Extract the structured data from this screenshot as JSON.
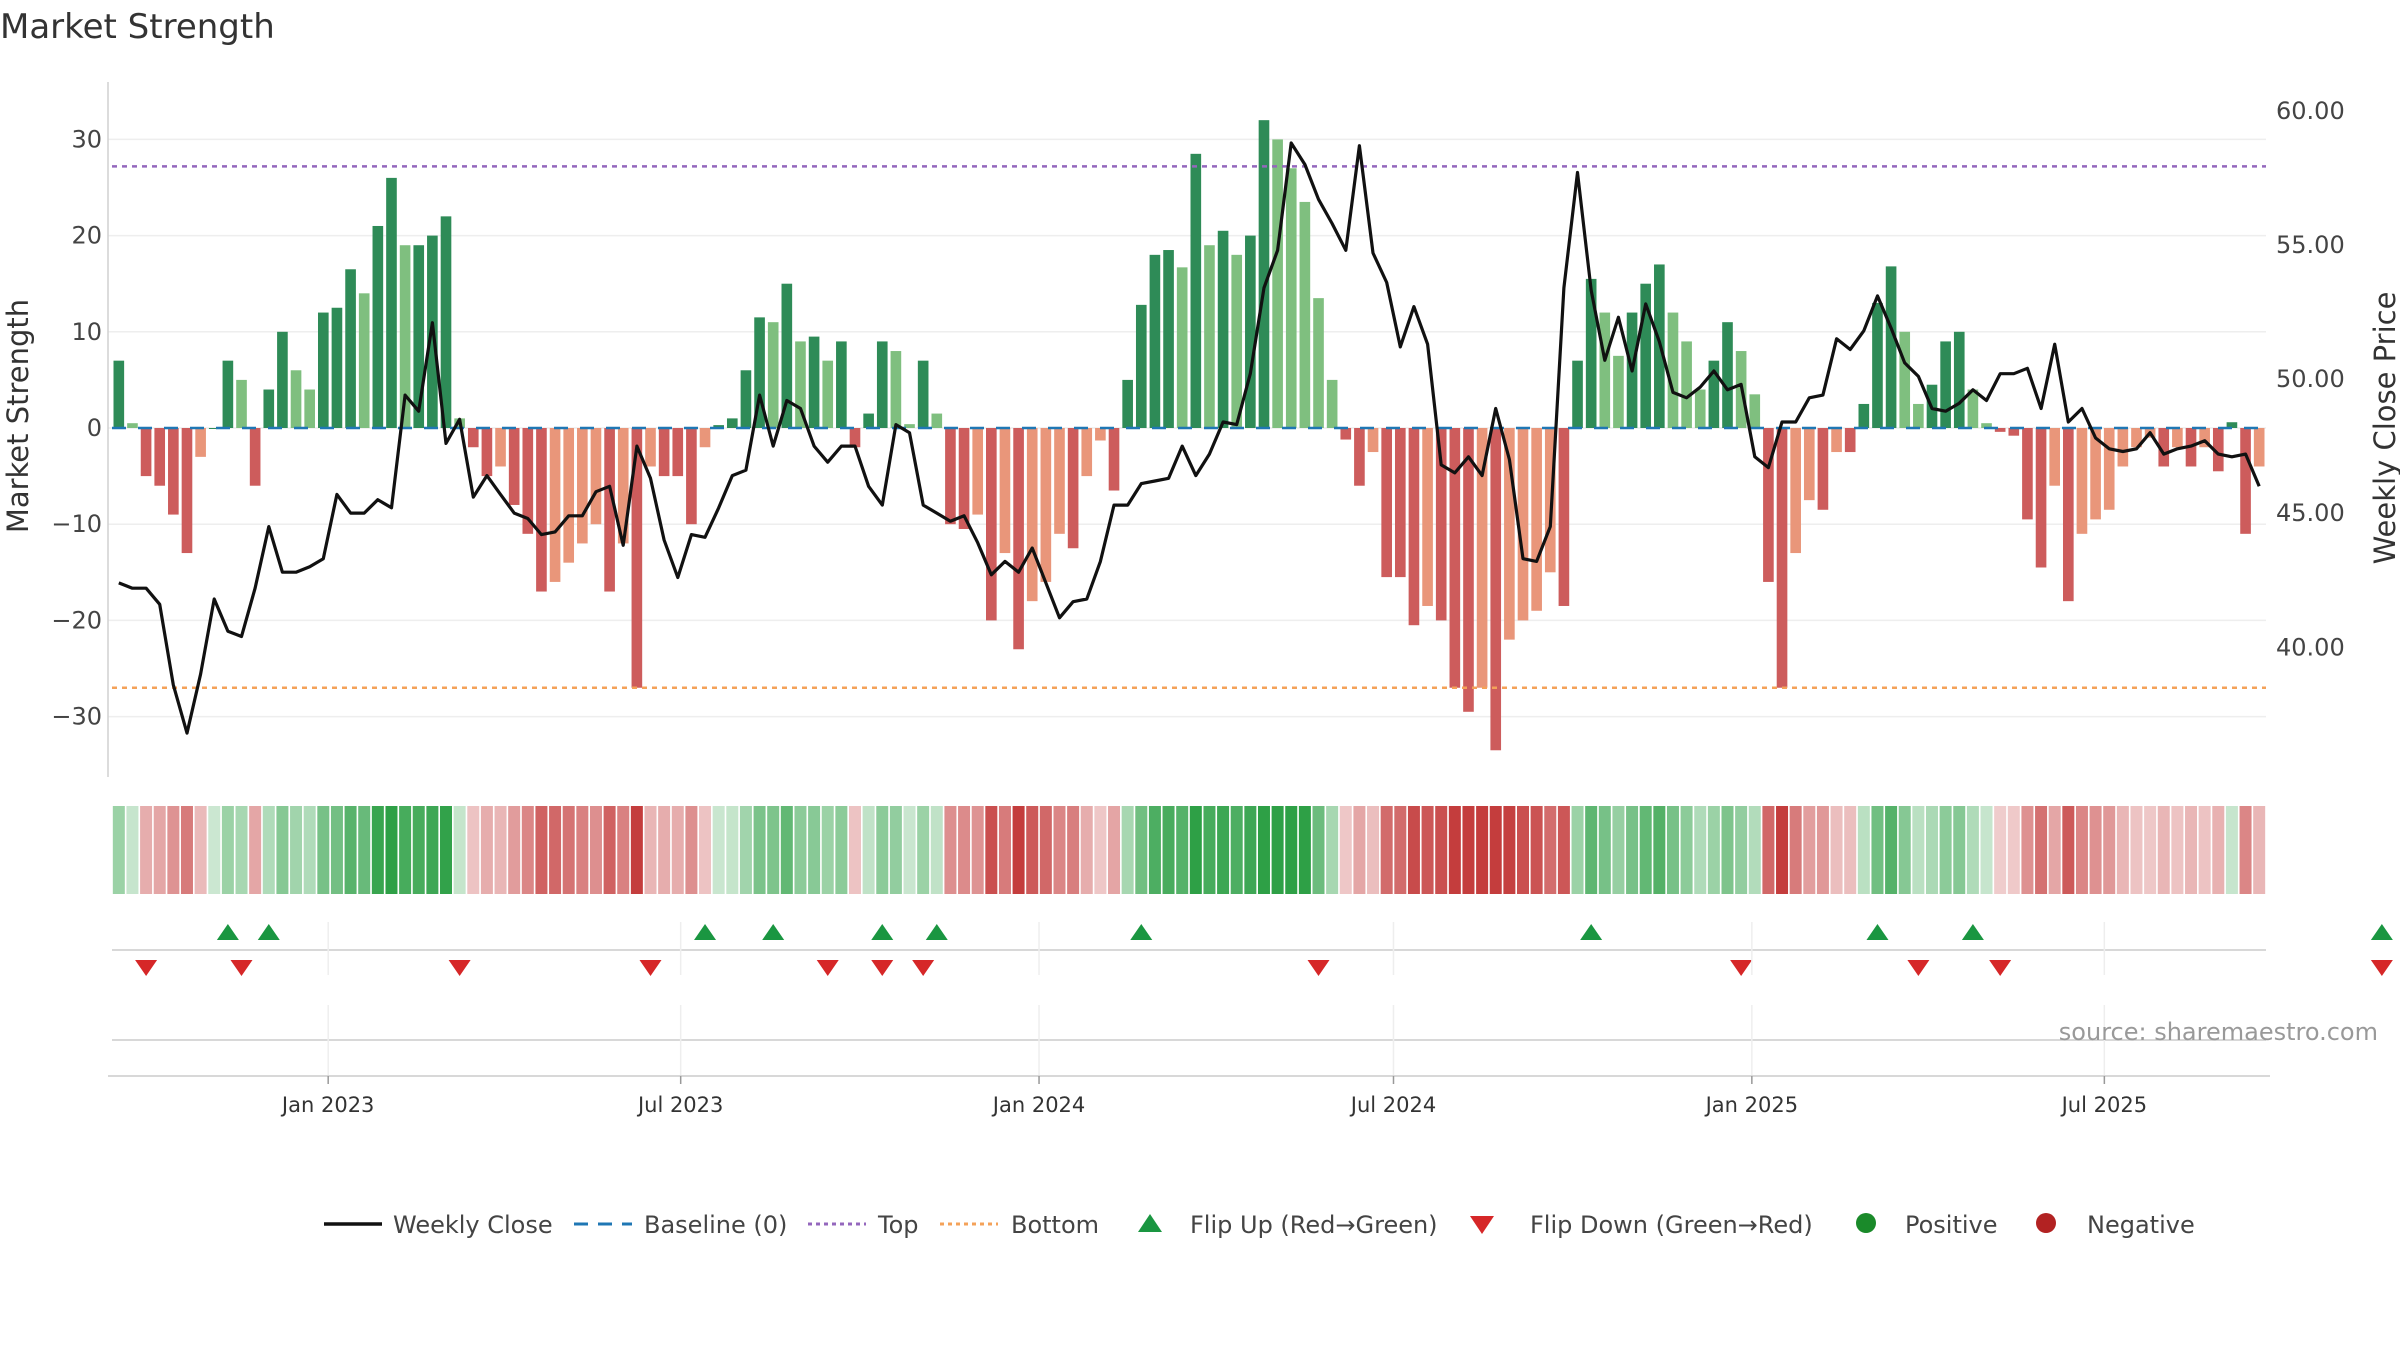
{
  "chart_data": {
    "type": "bar+line",
    "title": "Market Strength",
    "ylabel_left": "Market Strength",
    "ylabel_right": "Weekly Close Price",
    "left_ylim": [
      -36,
      36
    ],
    "left_ticks": [
      -30,
      -20,
      -10,
      0,
      10,
      20,
      30
    ],
    "left_tick_labels": [
      "−30",
      "−20",
      "−10",
      "0",
      "10",
      "20",
      "30"
    ],
    "right_ylim": [
      35.2,
      61.0
    ],
    "right_ticks": [
      40,
      45,
      50,
      55,
      60
    ],
    "right_tick_labels": [
      "40.00",
      "45.00",
      "50.00",
      "55.00",
      "60.00"
    ],
    "top_level": 27.2,
    "bottom_level": -27.0,
    "baseline": 0,
    "date_range": [
      "2022-09-12",
      "2025-09-22"
    ],
    "x_ticks": [
      {
        "date": "2023-01-01",
        "label": "Jan 2023"
      },
      {
        "date": "2023-07-01",
        "label": "Jul 2023"
      },
      {
        "date": "2024-01-01",
        "label": "Jan 2024"
      },
      {
        "date": "2024-07-01",
        "label": "Jul 2024"
      },
      {
        "date": "2025-01-01",
        "label": "Jan 2025"
      },
      {
        "date": "2025-07-01",
        "label": "Jul 2025"
      }
    ],
    "strength": [
      7,
      0.5,
      -5,
      -6,
      -9,
      -13,
      -3,
      0,
      7,
      5,
      -6,
      4,
      10,
      6,
      4,
      12,
      12.5,
      16.5,
      14,
      21,
      26,
      19,
      19,
      20,
      22,
      1,
      -2,
      -5,
      -4,
      -8,
      -11,
      -17,
      -16,
      -14,
      -12,
      -10,
      -17,
      -12,
      -27,
      -4,
      -5,
      -5,
      -10,
      -2,
      0.3,
      1,
      6,
      11.5,
      11,
      15,
      9,
      9.5,
      7,
      9,
      -2,
      1.5,
      9,
      8,
      0.4,
      7,
      1.5,
      -10,
      -10.5,
      -9,
      -20,
      -13,
      -23,
      -18,
      -16,
      -11,
      -12.5,
      -5,
      -1.3,
      -6.5,
      5,
      12.8,
      18,
      18.5,
      16.7,
      28.5,
      19,
      20.5,
      18,
      20,
      32,
      30,
      27,
      23.5,
      13.5,
      5,
      -1.2,
      -6,
      -2.5,
      -15.5,
      -15.5,
      -20.5,
      -18.5,
      -20,
      -27,
      -29.5,
      -27,
      -33.5,
      -22,
      -20,
      -19,
      -15,
      -18.5,
      7,
      15.5,
      12,
      7.5,
      12,
      15,
      17,
      12,
      9,
      4,
      7,
      11,
      8,
      3.5,
      -16,
      -27,
      -13,
      -7.5,
      -8.5,
      -2.5,
      -2.5,
      2.5,
      13,
      16.8,
      10,
      2.5,
      4.5,
      9,
      10,
      4,
      0.5,
      -0.4,
      -0.8,
      -9.5,
      -14.5,
      -6,
      -18,
      -11,
      -9.5,
      -8.5,
      -4,
      -2,
      -1,
      -4,
      -2,
      -4,
      -2,
      -4.5,
      0.6,
      -11,
      -4
    ],
    "weekly_close": [
      42.4,
      42.2,
      42.2,
      41.6,
      38.6,
      36.8,
      39.0,
      41.8,
      40.6,
      40.4,
      42.2,
      44.5,
      42.8,
      42.8,
      43.0,
      43.3,
      45.7,
      45.0,
      45.0,
      45.5,
      45.2,
      49.4,
      48.8,
      52.1,
      47.6,
      48.5,
      45.6,
      46.4,
      45.7,
      45.0,
      44.8,
      44.2,
      44.3,
      44.9,
      44.9,
      45.8,
      46.0,
      43.8,
      47.5,
      46.3,
      44.0,
      42.6,
      44.2,
      44.1,
      45.2,
      46.4,
      46.6,
      49.4,
      47.5,
      49.2,
      48.9,
      47.5,
      46.9,
      47.5,
      47.5,
      46.0,
      45.3,
      48.3,
      48.0,
      45.3,
      45.0,
      44.7,
      44.9,
      43.9,
      42.7,
      43.2,
      42.8,
      43.7,
      42.4,
      41.1,
      41.7,
      41.8,
      43.2,
      45.3,
      45.3,
      46.1,
      46.2,
      46.3,
      47.5,
      46.4,
      47.2,
      48.4,
      48.3,
      50.2,
      53.4,
      54.8,
      58.8,
      58.0,
      56.7,
      55.8,
      54.8,
      58.7,
      54.7,
      53.6,
      51.2,
      52.7,
      51.3,
      46.8,
      46.5,
      47.1,
      46.4,
      48.9,
      47.0,
      43.3,
      43.2,
      44.5,
      53.4,
      57.7,
      53.3,
      50.7,
      52.3,
      50.3,
      52.8,
      51.4,
      49.5,
      49.3,
      49.7,
      50.3,
      49.6,
      49.8,
      47.1,
      46.7,
      48.4,
      48.4,
      49.3,
      49.4,
      51.5,
      51.1,
      51.8,
      53.1,
      51.9,
      50.6,
      50.1,
      48.9,
      48.8,
      49.1,
      49.6,
      49.2,
      50.2,
      50.2,
      50.4,
      48.9,
      51.3,
      48.4,
      48.9,
      47.8,
      47.4,
      47.3,
      47.4,
      48.0,
      47.2,
      47.4,
      47.5,
      47.7,
      47.2,
      47.1,
      47.2,
      46.0
    ],
    "flip_up_weeks": [
      8,
      11,
      43,
      48,
      56,
      60,
      75,
      108,
      129,
      136,
      166
    ],
    "flip_down_weeks": [
      2,
      9,
      25,
      39,
      52,
      56,
      59,
      88,
      119,
      132,
      138,
      166
    ],
    "status_weeks_count": 168
  },
  "legend": [
    {
      "key": "weekly_close",
      "label": "Weekly Close",
      "color": "#111111"
    },
    {
      "key": "baseline",
      "label": "Baseline (0)",
      "color": "#1f77b4"
    },
    {
      "key": "top",
      "label": "Top",
      "color": "#9467bd"
    },
    {
      "key": "bottom",
      "label": "Bottom",
      "color": "#f4a259"
    },
    {
      "key": "flip_up",
      "label": "Flip Up (Red→Green)",
      "color": "#1a9641"
    },
    {
      "key": "flip_down",
      "label": "Flip Down (Green→Red)",
      "color": "#d62728"
    },
    {
      "key": "positive",
      "label": "Positive",
      "color": "#1a8a2a"
    },
    {
      "key": "negative",
      "label": "Negative",
      "color": "#b22222"
    }
  ],
  "source_text": "source: sharemaestro.com",
  "colors": {
    "bar_up_strong": "#2e8b57",
    "bar_up_light": "#7fbf7f",
    "bar_down_strong": "#cd5c5c",
    "bar_down_light": "#e9967a",
    "close_line": "#111111",
    "baseline": "#1f77b4",
    "top": "#9467bd",
    "bottom": "#f4a259",
    "grid": "#eeeeee"
  }
}
